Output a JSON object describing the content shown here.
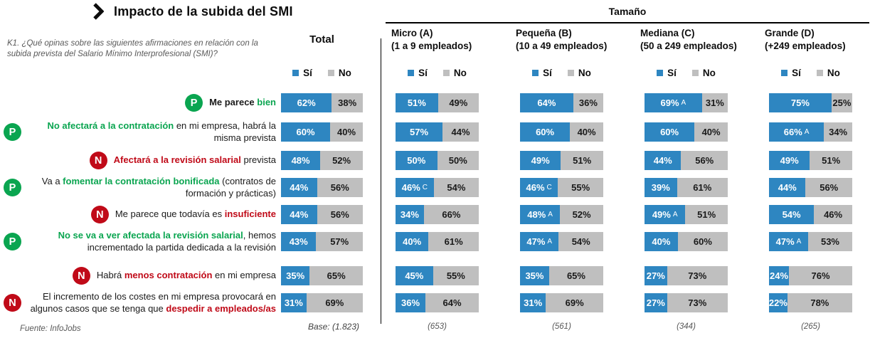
{
  "header": {
    "chevron_icon": "chevron-right",
    "title": "Impacto de la subida del SMI",
    "question": "K1. ¿Qué opinas sobre las siguientes afirmaciones en relación con la subida prevista del Salario Mínimo Interprofesional (SMI)?",
    "tamano_label": "Tamaño"
  },
  "legend": {
    "si": "Sí",
    "no": "No"
  },
  "colors": {
    "si_bar": "#2E86C1",
    "no_bar": "#BFBFBF",
    "positive": "#0AA550",
    "negative": "#C00A18"
  },
  "footer": {
    "source": "Fuente: InfoJobs"
  },
  "chart_data": {
    "type": "bar",
    "orientation": "horizontal_stacked",
    "unit": "percent",
    "legend": [
      "Sí",
      "No"
    ],
    "columns": [
      {
        "id": "total",
        "label": "Total",
        "sublabel": "",
        "base": "Base: (1.823)"
      },
      {
        "id": "micro",
        "label": "Micro (A)",
        "sublabel": "(1 a 9 empleados)",
        "base": "(653)"
      },
      {
        "id": "pequena",
        "label": "Pequeña (B)",
        "sublabel": "(10 a 49 empleados)",
        "base": "(561)"
      },
      {
        "id": "mediana",
        "label": "Mediana (C)",
        "sublabel": "(50 a 249 empleados)",
        "base": "(344)"
      },
      {
        "id": "grande",
        "label": "Grande (D)",
        "sublabel": "(+249 empleados)",
        "base": "(265)"
      }
    ],
    "rows": [
      {
        "badge": "P",
        "sentiment": "positive",
        "segments": [
          {
            "text": "Me parece ",
            "style": "bold"
          },
          {
            "text": "bien",
            "style": "color"
          }
        ],
        "values": {
          "total": {
            "si": 62,
            "no": 38
          },
          "micro": {
            "si": 51,
            "no": 49
          },
          "pequena": {
            "si": 64,
            "no": 36
          },
          "mediana": {
            "si": 69,
            "no": 31,
            "letter": "A"
          },
          "grande": {
            "si": 75,
            "no": 25
          }
        }
      },
      {
        "badge": "P",
        "sentiment": "positive",
        "segments": [
          {
            "text": "No afectará a la contratación",
            "style": "color"
          },
          {
            "text": " en mi empresa, habrá la misma prevista",
            "style": "plain"
          }
        ],
        "values": {
          "total": {
            "si": 60,
            "no": 40
          },
          "micro": {
            "si": 57,
            "no": 44
          },
          "pequena": {
            "si": 60,
            "no": 40
          },
          "mediana": {
            "si": 60,
            "no": 40
          },
          "grande": {
            "si": 66,
            "no": 34,
            "letter": "A"
          }
        }
      },
      {
        "badge": "N",
        "sentiment": "negative",
        "segments": [
          {
            "text": "Afectará a la revisión salarial",
            "style": "color"
          },
          {
            "text": " prevista",
            "style": "plain"
          }
        ],
        "values": {
          "total": {
            "si": 48,
            "no": 52
          },
          "micro": {
            "si": 50,
            "no": 50
          },
          "pequena": {
            "si": 49,
            "no": 51
          },
          "mediana": {
            "si": 44,
            "no": 56
          },
          "grande": {
            "si": 49,
            "no": 51
          }
        }
      },
      {
        "badge": "P",
        "sentiment": "positive",
        "segments": [
          {
            "text": "Va a ",
            "style": "plain"
          },
          {
            "text": "fomentar la contratación bonificada",
            "style": "color"
          },
          {
            "text": " (contratos de formación y prácticas)",
            "style": "plain"
          }
        ],
        "values": {
          "total": {
            "si": 44,
            "no": 56
          },
          "micro": {
            "si": 46,
            "no": 54,
            "letter": "C"
          },
          "pequena": {
            "si": 46,
            "no": 55,
            "letter": "C"
          },
          "mediana": {
            "si": 39,
            "no": 61
          },
          "grande": {
            "si": 44,
            "no": 56
          }
        }
      },
      {
        "badge": "N",
        "sentiment": "negative",
        "segments": [
          {
            "text": "Me parece que todavía es ",
            "style": "plain"
          },
          {
            "text": "insuficiente",
            "style": "color"
          }
        ],
        "values": {
          "total": {
            "si": 44,
            "no": 56
          },
          "micro": {
            "si": 34,
            "no": 66
          },
          "pequena": {
            "si": 48,
            "no": 52,
            "letter": "A"
          },
          "mediana": {
            "si": 49,
            "no": 51,
            "letter": "A"
          },
          "grande": {
            "si": 54,
            "no": 46
          }
        }
      },
      {
        "badge": "P",
        "sentiment": "positive",
        "segments": [
          {
            "text": "No se va a ver afectada la revisión salarial",
            "style": "color"
          },
          {
            "text": ", hemos incrementado la partida dedicada a la revisión",
            "style": "plain"
          }
        ],
        "values": {
          "total": {
            "si": 43,
            "no": 57
          },
          "micro": {
            "si": 40,
            "no": 61
          },
          "pequena": {
            "si": 47,
            "no": 54,
            "letter": "A"
          },
          "mediana": {
            "si": 40,
            "no": 60
          },
          "grande": {
            "si": 47,
            "no": 53,
            "letter": "A"
          }
        }
      },
      {
        "badge": "N",
        "sentiment": "negative",
        "segments": [
          {
            "text": "Habrá ",
            "style": "plain"
          },
          {
            "text": "menos contratación",
            "style": "color"
          },
          {
            "text": " en mi empresa",
            "style": "plain"
          }
        ],
        "values": {
          "total": {
            "si": 35,
            "no": 65
          },
          "micro": {
            "si": 45,
            "no": 55
          },
          "pequena": {
            "si": 35,
            "no": 65
          },
          "mediana": {
            "si": 27,
            "no": 73
          },
          "grande": {
            "si": 24,
            "no": 76
          }
        }
      },
      {
        "badge": "N",
        "sentiment": "negative",
        "segments": [
          {
            "text": "El incremento de los costes en mi empresa provocará en algunos casos que se tenga que ",
            "style": "plain"
          },
          {
            "text": "despedir a empleados/as",
            "style": "color"
          }
        ],
        "values": {
          "total": {
            "si": 31,
            "no": 69
          },
          "micro": {
            "si": 36,
            "no": 64
          },
          "pequena": {
            "si": 31,
            "no": 69
          },
          "mediana": {
            "si": 27,
            "no": 73
          },
          "grande": {
            "si": 22,
            "no": 78
          }
        }
      }
    ]
  }
}
